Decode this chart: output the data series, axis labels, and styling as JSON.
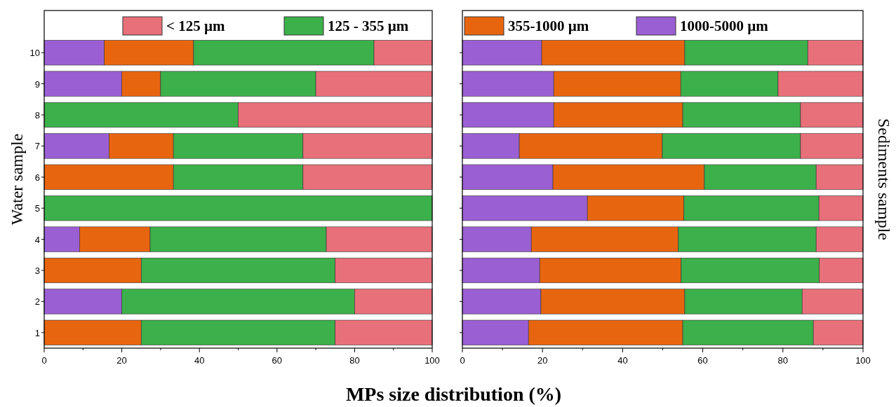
{
  "chart_data": [
    {
      "type": "bar",
      "orientation": "horizontal",
      "stacked": true,
      "ylabel": "Water sample",
      "xlabel": "MPs size distribution (%)",
      "legend": "top",
      "categories": [
        "10",
        "9",
        "8",
        "7",
        "6",
        "5",
        "4",
        "3",
        "2",
        "1"
      ],
      "xlim": [
        0,
        100
      ],
      "xticks": [
        0,
        20,
        40,
        60,
        80,
        100
      ],
      "series": [
        {
          "name": "1000-5000 µm",
          "color": "#9b5fd4",
          "values": [
            15.5,
            20,
            0,
            16.7,
            0,
            0,
            9.1,
            0,
            20,
            0
          ]
        },
        {
          "name": "355-1000 µm",
          "color": "#e8650f",
          "values": [
            23,
            10,
            0,
            16.6,
            33.3,
            0,
            18.2,
            25,
            0,
            25
          ]
        },
        {
          "name": "125 - 355 µm",
          "color": "#3cb04a",
          "values": [
            46.5,
            40,
            50,
            33.4,
            33.4,
            100,
            45.4,
            50,
            60,
            50
          ]
        },
        {
          "name": "< 125 µm",
          "color": "#e8707a",
          "values": [
            15,
            30,
            50,
            33.3,
            33.3,
            0,
            27.3,
            25,
            20,
            25
          ]
        }
      ]
    },
    {
      "type": "bar",
      "orientation": "horizontal",
      "stacked": true,
      "ylabel": "Sediments sample",
      "tick_labels": "x",
      "categories": [
        "10",
        "9",
        "8",
        "7",
        "6",
        "5",
        "4",
        "3",
        "2",
        "1"
      ],
      "xlim": [
        0,
        100
      ],
      "xticks": [
        0,
        20,
        40,
        60,
        80,
        100
      ],
      "series": [
        {
          "color": "#9b5fd4",
          "values": [
            19.8,
            22.8,
            22.8,
            14.2,
            22.6,
            31.2,
            17.2,
            19.3,
            19.6,
            16.5
          ]
        },
        {
          "color": "#e8650f",
          "values": [
            35.7,
            31.7,
            32.2,
            35.7,
            37.8,
            24.1,
            36.7,
            35.3,
            35.9,
            38.5
          ]
        },
        {
          "color": "#3cb04a",
          "values": [
            30.7,
            24.3,
            29.4,
            34.5,
            27.9,
            33.7,
            34.4,
            34.5,
            29.3,
            32.6
          ]
        },
        {
          "color": "#e8707a",
          "values": [
            13.8,
            21.2,
            15.6,
            15.6,
            11.7,
            11,
            11.7,
            10.9,
            15.2,
            12.4
          ]
        }
      ]
    }
  ]
}
